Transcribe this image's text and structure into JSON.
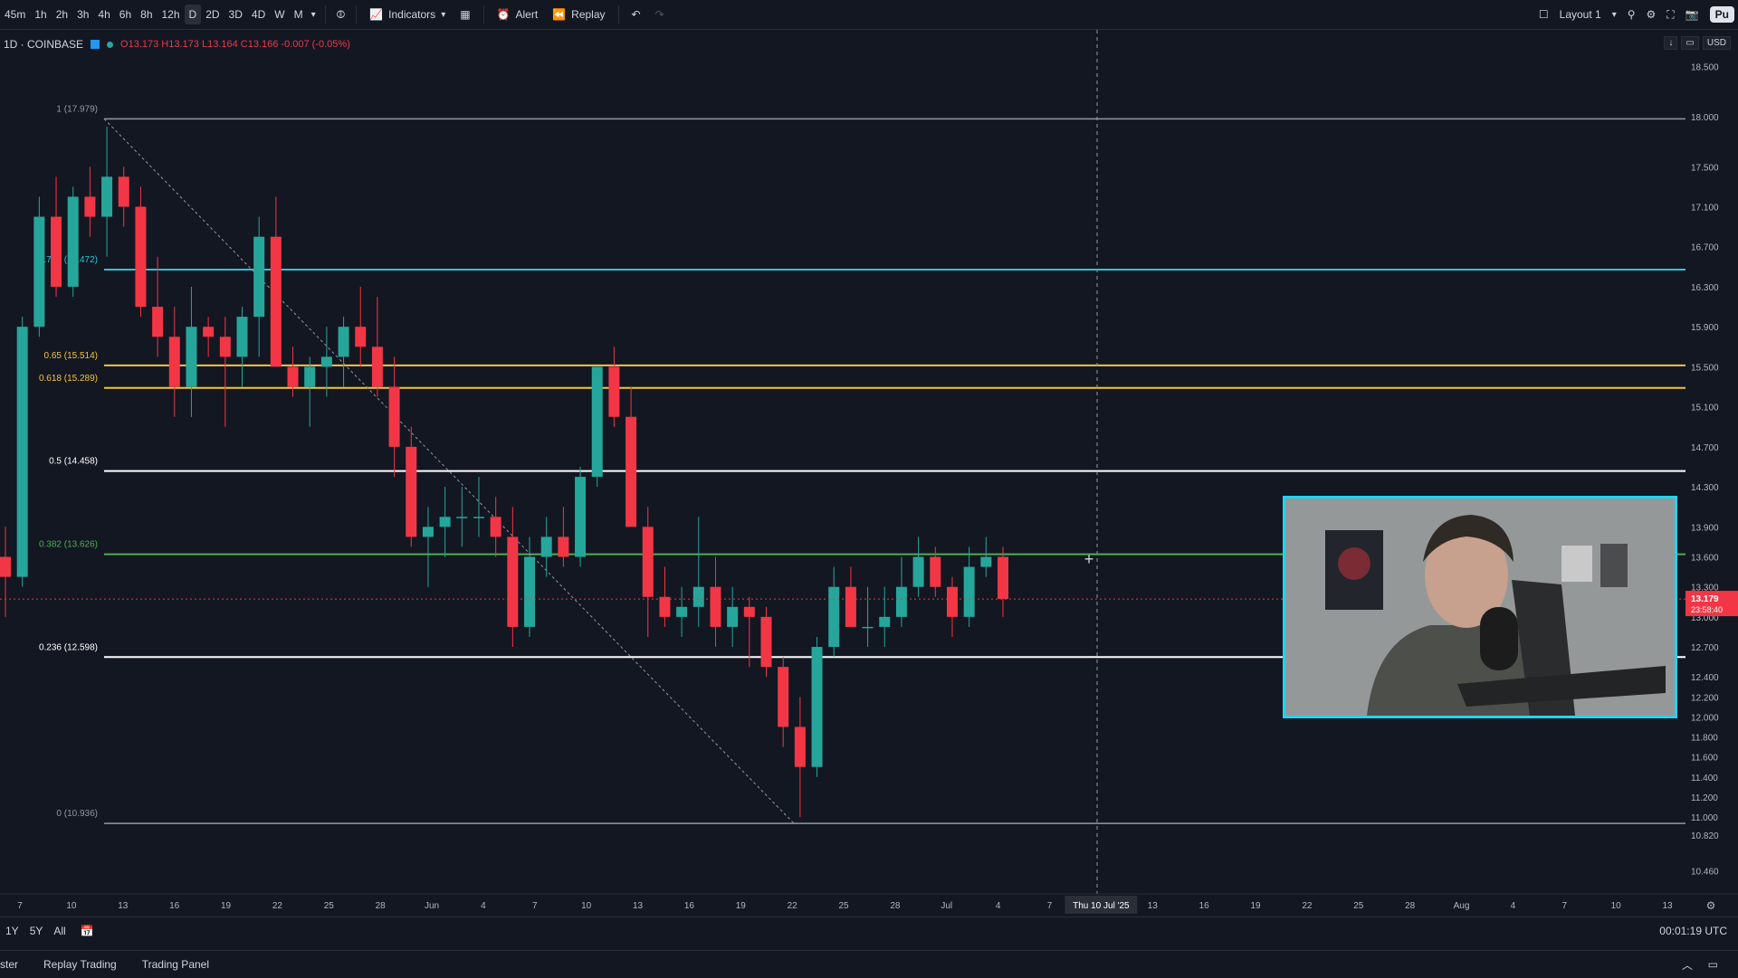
{
  "toolbar": {
    "timeframes": [
      "45m",
      "1h",
      "2h",
      "3h",
      "4h",
      "6h",
      "8h",
      "12h",
      "D",
      "2D",
      "3D",
      "4D",
      "W",
      "M"
    ],
    "active_timeframe": "D",
    "indicators_label": "Indicators",
    "alert_label": "Alert",
    "replay_label": "Replay",
    "layout_label": "Layout 1",
    "publish_label": "Pu"
  },
  "legend": {
    "symbol": "1D · COINBASE",
    "open": "O13.173",
    "high": "H13.173",
    "low": "L13.164",
    "close": "C13.166",
    "change": "-0.007 (-0.05%)"
  },
  "price_tools": {
    "currency": "USD"
  },
  "chart_data": {
    "type": "candlestick",
    "price_axis": [
      "18.500",
      "18.000",
      "17.500",
      "17.100",
      "16.700",
      "16.300",
      "15.900",
      "15.500",
      "15.100",
      "14.700",
      "14.300",
      "13.900",
      "13.600",
      "13.300",
      "13.000",
      "12.700",
      "12.400",
      "12.200",
      "12.000",
      "11.800",
      "11.600",
      "11.400",
      "11.200",
      "11.000",
      "10.820",
      "10.460"
    ],
    "current_price": "13.179",
    "countdown": "23:58:40",
    "time_axis": [
      "7",
      "10",
      "13",
      "16",
      "19",
      "22",
      "25",
      "28",
      "Jun",
      "4",
      "7",
      "10",
      "13",
      "16",
      "19",
      "22",
      "25",
      "28",
      "Jul",
      "4",
      "7",
      "Thu 10 Jul '25",
      "13",
      "16",
      "19",
      "22",
      "25",
      "28",
      "Aug",
      "4",
      "7",
      "10",
      "13"
    ],
    "fib_levels": [
      {
        "label": "1 (17.979)",
        "value": 17.979,
        "color": "#9598a1"
      },
      {
        "label": "0.786 (16.472)",
        "value": 16.472,
        "color": "#26c6da"
      },
      {
        "label": "0.65 (15.514)",
        "value": 15.514,
        "color": "#f5c342"
      },
      {
        "label": "0.618 (15.289)",
        "value": 15.289,
        "color": "#f5c342"
      },
      {
        "label": "0.5 (14.458)",
        "value": 14.458,
        "color": "#ffffff"
      },
      {
        "label": "0.382 (13.626)",
        "value": 13.626,
        "color": "#4caf50"
      },
      {
        "label": "0.236 (12.598)",
        "value": 12.598,
        "color": "#ffffff"
      },
      {
        "label": "0 (10.936)",
        "value": 10.936,
        "color": "#9598a1"
      }
    ],
    "candles": [
      [
        13.6,
        13.9,
        13.0,
        13.4
      ],
      [
        13.4,
        16.0,
        13.3,
        15.9
      ],
      [
        15.9,
        17.2,
        15.8,
        17.0
      ],
      [
        17.0,
        17.4,
        16.2,
        16.3
      ],
      [
        16.3,
        17.3,
        16.2,
        17.2
      ],
      [
        17.2,
        17.5,
        16.8,
        17.0
      ],
      [
        17.0,
        17.9,
        16.6,
        17.4
      ],
      [
        17.4,
        17.5,
        16.9,
        17.1
      ],
      [
        17.1,
        17.3,
        16.0,
        16.1
      ],
      [
        16.1,
        16.6,
        15.6,
        15.8
      ],
      [
        15.8,
        16.1,
        15.0,
        15.3
      ],
      [
        15.3,
        16.3,
        15.0,
        15.9
      ],
      [
        15.9,
        16.0,
        15.6,
        15.8
      ],
      [
        15.8,
        16.0,
        14.9,
        15.6
      ],
      [
        15.6,
        16.1,
        15.3,
        16.0
      ],
      [
        16.0,
        17.0,
        15.6,
        16.8
      ],
      [
        16.8,
        17.2,
        15.5,
        15.5
      ],
      [
        15.5,
        15.7,
        15.2,
        15.3
      ],
      [
        15.3,
        15.6,
        14.9,
        15.5
      ],
      [
        15.5,
        15.9,
        15.2,
        15.6
      ],
      [
        15.6,
        16.0,
        15.3,
        15.9
      ],
      [
        15.9,
        16.3,
        15.5,
        15.7
      ],
      [
        15.7,
        16.2,
        15.2,
        15.3
      ],
      [
        15.3,
        15.6,
        14.4,
        14.7
      ],
      [
        14.7,
        14.9,
        13.7,
        13.8
      ],
      [
        13.8,
        14.1,
        13.3,
        13.9
      ],
      [
        13.9,
        14.3,
        13.6,
        14.0
      ],
      [
        14.0,
        14.3,
        13.7,
        14.0
      ],
      [
        14.0,
        14.4,
        13.8,
        14.0
      ],
      [
        14.0,
        14.2,
        13.6,
        13.8
      ],
      [
        13.8,
        14.1,
        12.7,
        12.9
      ],
      [
        12.9,
        13.8,
        12.8,
        13.6
      ],
      [
        13.6,
        14.0,
        13.4,
        13.8
      ],
      [
        13.8,
        14.1,
        13.5,
        13.6
      ],
      [
        13.6,
        14.5,
        13.5,
        14.4
      ],
      [
        14.4,
        15.5,
        14.3,
        15.5
      ],
      [
        15.5,
        15.7,
        14.9,
        15.0
      ],
      [
        15.0,
        15.3,
        13.9,
        13.9
      ],
      [
        13.9,
        14.1,
        12.8,
        13.2
      ],
      [
        13.2,
        13.5,
        12.9,
        13.0
      ],
      [
        13.0,
        13.3,
        12.8,
        13.1
      ],
      [
        13.1,
        14.0,
        12.9,
        13.3
      ],
      [
        13.3,
        13.6,
        12.7,
        12.9
      ],
      [
        12.9,
        13.3,
        12.7,
        13.1
      ],
      [
        13.1,
        13.2,
        12.5,
        13.0
      ],
      [
        13.0,
        13.1,
        12.4,
        12.5
      ],
      [
        12.5,
        12.6,
        11.7,
        11.9
      ],
      [
        11.9,
        12.2,
        11.0,
        11.5
      ],
      [
        11.5,
        12.8,
        11.4,
        12.7
      ],
      [
        12.7,
        13.5,
        12.6,
        13.3
      ],
      [
        13.3,
        13.5,
        12.9,
        12.9
      ],
      [
        12.9,
        13.3,
        12.7,
        12.9
      ],
      [
        12.9,
        13.3,
        12.7,
        13.0
      ],
      [
        13.0,
        13.6,
        12.9,
        13.3
      ],
      [
        13.3,
        13.8,
        13.2,
        13.6
      ],
      [
        13.6,
        13.7,
        13.2,
        13.3
      ],
      [
        13.3,
        13.4,
        12.8,
        13.0
      ],
      [
        13.0,
        13.7,
        12.9,
        13.5
      ],
      [
        13.5,
        13.8,
        13.4,
        13.6
      ],
      [
        13.6,
        13.7,
        13.0,
        13.18
      ]
    ]
  },
  "webcam": {
    "present": true
  },
  "bottom": {
    "ranges": [
      "1Y",
      "5Y",
      "All"
    ],
    "utc": "00:01:19 UTC",
    "panels": [
      "ster",
      "Replay Trading",
      "Trading Panel"
    ]
  }
}
